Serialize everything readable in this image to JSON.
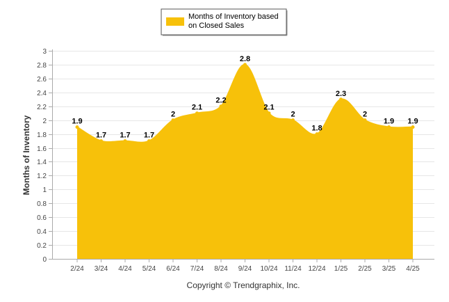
{
  "legend": {
    "lines": [
      "Months of Inventory based",
      "on Closed Sales"
    ]
  },
  "footer": "Copyright © Trendgraphix, Inc.",
  "colors": {
    "fill": "#F7C10A",
    "grid": "#E6E6E6",
    "axis": "#AAAAAA"
  },
  "chart_data": {
    "type": "area",
    "title": "",
    "xlabel": "",
    "ylabel": "Months of Inventory",
    "ylim": [
      0,
      3
    ],
    "ytick_step": 0.2,
    "yticks": [
      "0",
      "0.2",
      "0.4",
      "0.6",
      "0.8",
      "1",
      "1.2",
      "1.4",
      "1.6",
      "1.8",
      "2",
      "2.2",
      "2.4",
      "2.6",
      "2.8",
      "3"
    ],
    "grid": true,
    "legend_position": "top-center",
    "categories": [
      "2/24",
      "3/24",
      "4/24",
      "5/24",
      "6/24",
      "7/24",
      "8/24",
      "9/24",
      "10/24",
      "11/24",
      "12/24",
      "1/25",
      "2/25",
      "3/25",
      "4/25"
    ],
    "series": [
      {
        "name": "Months of Inventory based on Closed Sales",
        "values": [
          1.9,
          1.7,
          1.7,
          1.7,
          2,
          2.1,
          2.2,
          2.8,
          2.1,
          2,
          1.8,
          2.3,
          2,
          1.9,
          1.9
        ],
        "labels": [
          "1.9",
          "1.7",
          "1.7",
          "1.7",
          "2",
          "2.1",
          "2.2",
          "2.8",
          "2.1",
          "2",
          "1.8",
          "2.3",
          "2",
          "1.9",
          "1.9"
        ]
      }
    ]
  }
}
